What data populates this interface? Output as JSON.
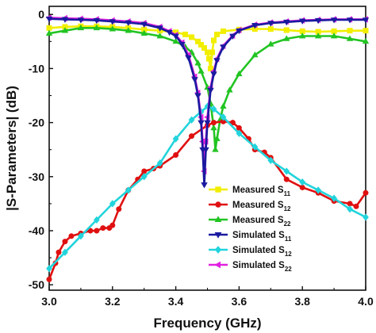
{
  "chart_data": {
    "type": "line",
    "title": "",
    "xlabel": "Frequency (GHz)",
    "ylabel": "|S-Parameters| (dB)",
    "xlim": [
      3.0,
      4.0
    ],
    "ylim": [
      -51,
      1.5
    ],
    "xticks": [
      3.0,
      3.2,
      3.4,
      3.6,
      3.8,
      4.0
    ],
    "xtick_labels": [
      "3.0",
      "3.2",
      "3.4",
      "3.6",
      "3.8",
      "4.0"
    ],
    "yticks": [
      0,
      -10,
      -20,
      -30,
      -40,
      -50
    ],
    "ytick_labels": [
      "0",
      "-10",
      "-20",
      "-30",
      "-40",
      "-50"
    ],
    "grid": false,
    "legend_position": "bottom-right",
    "series": [
      {
        "name": "Measured S11",
        "label_main": "Measured S",
        "label_sub": "11",
        "color": "#f2ee00",
        "marker": "square",
        "x": [
          3.0,
          3.05,
          3.1,
          3.15,
          3.2,
          3.25,
          3.3,
          3.35,
          3.4,
          3.43,
          3.45,
          3.47,
          3.48,
          3.49,
          3.5,
          3.505,
          3.51,
          3.515,
          3.52,
          3.53,
          3.55,
          3.6,
          3.65,
          3.7,
          3.75,
          3.8,
          3.85,
          3.9,
          3.95,
          4.0
        ],
        "y": [
          -2.5,
          -2.3,
          -2.2,
          -2.2,
          -2.3,
          -2.5,
          -2.8,
          -3.0,
          -3.3,
          -3.7,
          -4.2,
          -5.0,
          -5.6,
          -6.2,
          -7.0,
          -8.2,
          -10.0,
          -7.0,
          -4.8,
          -3.7,
          -3.1,
          -2.8,
          -2.7,
          -2.7,
          -2.9,
          -3.1,
          -3.2,
          -3.1,
          -3.0,
          -3.0
        ]
      },
      {
        "name": "Measured S12",
        "label_main": "Measured S",
        "label_sub": "12",
        "color": "#e01010",
        "marker": "circle",
        "x": [
          3.0,
          3.02,
          3.03,
          3.05,
          3.07,
          3.1,
          3.13,
          3.15,
          3.17,
          3.19,
          3.2,
          3.22,
          3.25,
          3.28,
          3.3,
          3.33,
          3.35,
          3.4,
          3.45,
          3.5,
          3.52,
          3.55,
          3.58,
          3.6,
          3.63,
          3.65,
          3.68,
          3.7,
          3.75,
          3.8,
          3.85,
          3.9,
          3.95,
          3.97,
          4.0
        ],
        "y": [
          -49.0,
          -46.0,
          -44.0,
          -42.0,
          -41.0,
          -40.5,
          -40.0,
          -40.0,
          -39.5,
          -39.5,
          -39.0,
          -36.0,
          -32.5,
          -30.5,
          -29.0,
          -28.5,
          -28.0,
          -26.0,
          -22.5,
          -20.5,
          -20.0,
          -19.8,
          -20.0,
          -21.0,
          -23.0,
          -25.0,
          -25.5,
          -26.5,
          -30.5,
          -32.0,
          -33.0,
          -34.5,
          -35.0,
          -35.5,
          -33.0
        ]
      },
      {
        "name": "Measured S22",
        "label_main": "Measured S",
        "label_sub": "22",
        "color": "#22c422",
        "marker": "triangle-up",
        "x": [
          3.0,
          3.05,
          3.1,
          3.15,
          3.2,
          3.25,
          3.3,
          3.35,
          3.4,
          3.43,
          3.45,
          3.47,
          3.48,
          3.5,
          3.51,
          3.52,
          3.525,
          3.53,
          3.54,
          3.55,
          3.57,
          3.6,
          3.65,
          3.7,
          3.75,
          3.8,
          3.85,
          3.9,
          3.95,
          4.0
        ],
        "y": [
          -3.5,
          -3.0,
          -2.5,
          -2.5,
          -2.7,
          -3.0,
          -3.5,
          -4.0,
          -5.0,
          -6.0,
          -7.0,
          -9.0,
          -10.5,
          -13.5,
          -16.5,
          -21.0,
          -25.0,
          -23.0,
          -19.5,
          -17.0,
          -14.0,
          -11.0,
          -7.5,
          -5.5,
          -4.5,
          -4.0,
          -4.0,
          -4.0,
          -4.5,
          -5.0
        ]
      },
      {
        "name": "Simulated S11",
        "label_main": "Simulated S",
        "label_sub": "11",
        "color": "#1a1aa0",
        "marker": "triangle-down",
        "x": [
          3.0,
          3.05,
          3.1,
          3.15,
          3.2,
          3.25,
          3.3,
          3.35,
          3.38,
          3.4,
          3.42,
          3.44,
          3.46,
          3.47,
          3.48,
          3.485,
          3.49,
          3.495,
          3.5,
          3.51,
          3.52,
          3.53,
          3.55,
          3.58,
          3.6,
          3.65,
          3.7,
          3.75,
          3.8,
          3.85,
          3.9,
          3.95,
          4.0
        ],
        "y": [
          -0.8,
          -0.9,
          -1.0,
          -1.1,
          -1.3,
          -1.5,
          -1.8,
          -2.5,
          -3.3,
          -4.0,
          -5.5,
          -8.0,
          -12.0,
          -15.0,
          -20.0,
          -25.0,
          -31.5,
          -25.0,
          -20.0,
          -14.0,
          -11.0,
          -8.5,
          -6.0,
          -4.0,
          -3.0,
          -2.0,
          -1.6,
          -1.4,
          -1.2,
          -1.1,
          -1.0,
          -1.0,
          -1.0
        ]
      },
      {
        "name": "Simulated S12",
        "label_main": "Simulated S",
        "label_sub": "12",
        "color": "#22d4dc",
        "marker": "diamond",
        "x": [
          3.0,
          3.05,
          3.1,
          3.15,
          3.2,
          3.25,
          3.3,
          3.35,
          3.4,
          3.45,
          3.48,
          3.5,
          3.52,
          3.55,
          3.6,
          3.65,
          3.7,
          3.75,
          3.8,
          3.85,
          3.9,
          3.95,
          4.0
        ],
        "y": [
          -47.0,
          -44.0,
          -41.0,
          -38.0,
          -35.0,
          -32.5,
          -30.0,
          -27.5,
          -23.0,
          -19.5,
          -18.0,
          -17.0,
          -17.5,
          -19.0,
          -22.0,
          -24.5,
          -27.0,
          -29.0,
          -31.0,
          -32.5,
          -34.0,
          -36.0,
          -37.5
        ]
      },
      {
        "name": "Simulated S22",
        "label_main": "Simulated S",
        "label_sub": "22",
        "color": "#e020e0",
        "marker": "triangle-left",
        "x": [
          3.0,
          3.05,
          3.1,
          3.15,
          3.2,
          3.25,
          3.3,
          3.35,
          3.38,
          3.4,
          3.42,
          3.44,
          3.46,
          3.47,
          3.48,
          3.485,
          3.49,
          3.495,
          3.5,
          3.51,
          3.52,
          3.53,
          3.55,
          3.58,
          3.6,
          3.65,
          3.7,
          3.75,
          3.8,
          3.85,
          3.9,
          3.95,
          4.0
        ],
        "y": [
          -0.6,
          -0.7,
          -0.8,
          -0.9,
          -1.1,
          -1.3,
          -1.6,
          -2.3,
          -3.1,
          -3.8,
          -5.2,
          -7.5,
          -11.5,
          -14.5,
          -19.0,
          -23.5,
          -29.0,
          -23.5,
          -19.0,
          -13.5,
          -10.5,
          -8.2,
          -5.8,
          -3.9,
          -2.9,
          -1.9,
          -1.5,
          -1.3,
          -1.1,
          -1.0,
          -0.9,
          -0.9,
          -0.9
        ]
      }
    ]
  }
}
